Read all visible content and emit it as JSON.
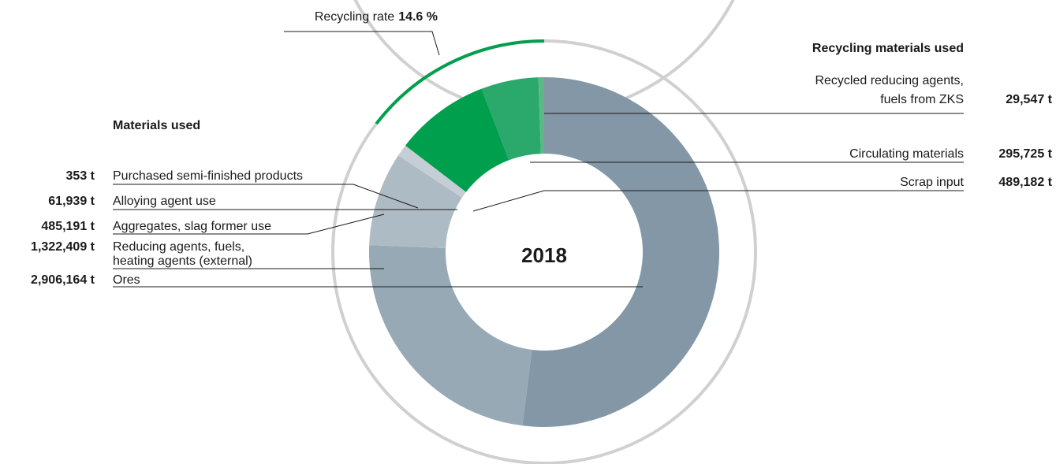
{
  "chart_data": {
    "type": "donut",
    "center_label": "2018",
    "series": [
      {
        "name": "Materials used",
        "categories": [
          "Ores",
          [
            "Reducing agents, fuels,",
            "heating agents (external)"
          ],
          "Aggregates, slag former use",
          "Alloying agent use",
          "Purchased semi-finished products"
        ],
        "values": [
          2906164,
          1322409,
          485191,
          61939,
          353
        ],
        "value_labels": [
          "2,906,164 t",
          "1,322,409 t",
          "485,191 t",
          "61,939 t",
          "353 t"
        ],
        "colors": [
          "#8397a6",
          "#97a9b5",
          "#adbbc5",
          "#c5ced5",
          "#d8dfe4"
        ]
      },
      {
        "name": "Recycling materials used",
        "categories": [
          "Scrap input",
          "Circulating materials",
          [
            "Recycled reducing agents,",
            "fuels from ZKS"
          ]
        ],
        "values": [
          489182,
          295725,
          29547
        ],
        "value_labels": [
          "489,182 t",
          "295,725 t",
          "29,547 t"
        ],
        "colors": [
          "#009f4d",
          "#2ba86c",
          "#5cb986"
        ]
      }
    ],
    "recycling_rate": {
      "label": "Recycling rate",
      "value": 14.6,
      "value_label": "14.6 %",
      "color": "#009f4d"
    }
  }
}
